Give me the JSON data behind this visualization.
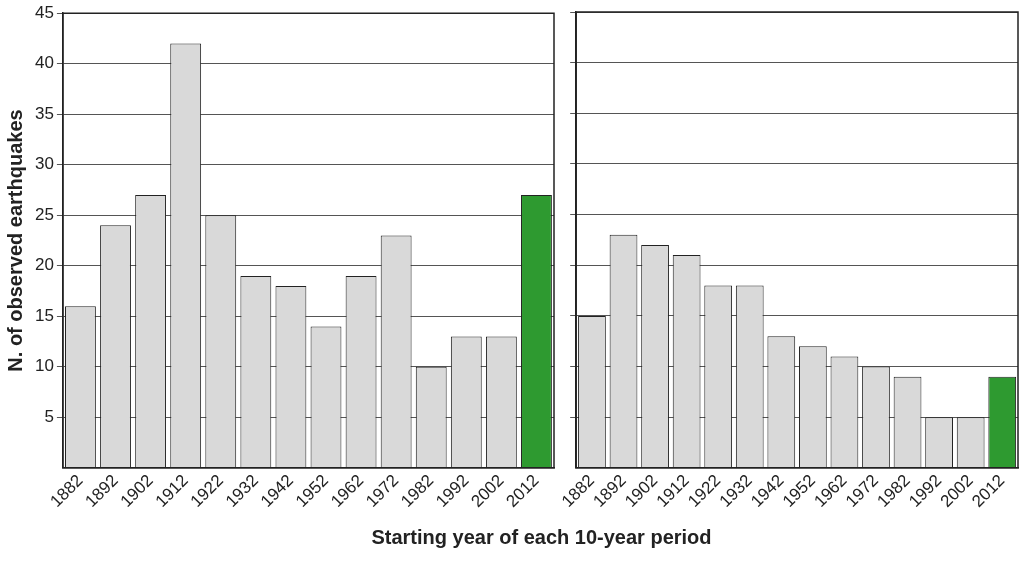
{
  "chart_data": [
    {
      "type": "bar",
      "ylabel": "N. of observed earthquakes",
      "xlabel": "Starting year of each 10-year period",
      "categories": [
        "1882",
        "1892",
        "1902",
        "1912",
        "1922",
        "1932",
        "1942",
        "1952",
        "1962",
        "1972",
        "1982",
        "1992",
        "2002",
        "2012"
      ],
      "values": [
        16,
        24,
        27,
        42,
        25,
        19,
        18,
        14,
        19,
        23,
        10,
        13,
        13,
        27
      ],
      "colors": [
        "#d9d9d9",
        "#d9d9d9",
        "#d9d9d9",
        "#d9d9d9",
        "#d9d9d9",
        "#d9d9d9",
        "#d9d9d9",
        "#d9d9d9",
        "#d9d9d9",
        "#d9d9d9",
        "#d9d9d9",
        "#d9d9d9",
        "#d9d9d9",
        "#2e9a30"
      ],
      "ylim": [
        0,
        45
      ],
      "yticks": [
        5,
        10,
        15,
        20,
        25,
        30,
        35,
        40,
        45
      ],
      "grid": "y"
    },
    {
      "type": "bar",
      "categories": [
        "1882",
        "1892",
        "1902",
        "1912",
        "1922",
        "1932",
        "1942",
        "1952",
        "1962",
        "1972",
        "1982",
        "1992",
        "2002",
        "2012"
      ],
      "values": [
        15,
        23,
        22,
        21,
        18,
        18,
        13,
        12,
        11,
        10,
        9,
        5,
        5,
        9
      ],
      "colors": [
        "#d9d9d9",
        "#d9d9d9",
        "#d9d9d9",
        "#d9d9d9",
        "#d9d9d9",
        "#d9d9d9",
        "#d9d9d9",
        "#d9d9d9",
        "#d9d9d9",
        "#d9d9d9",
        "#d9d9d9",
        "#d9d9d9",
        "#d9d9d9",
        "#2e9a30"
      ],
      "ylim": [
        0,
        45
      ],
      "yticks": [
        5,
        10,
        15,
        20,
        25,
        30,
        35,
        40,
        45
      ],
      "grid": "y",
      "tick_labels": "x"
    }
  ]
}
